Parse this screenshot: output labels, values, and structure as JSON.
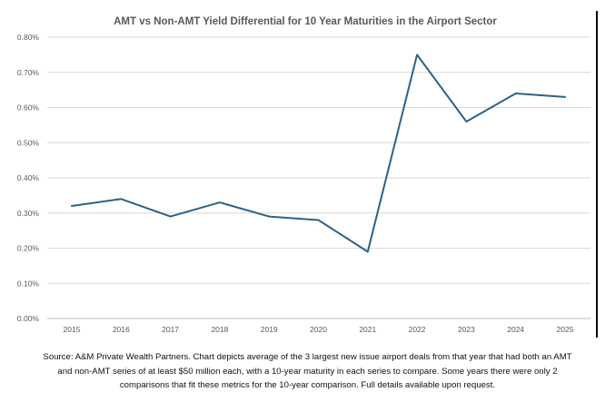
{
  "chart_data": {
    "type": "line",
    "title": "AMT vs Non-AMT Yield Differential for 10 Year Maturities in the Airport Sector",
    "xlabel": "",
    "ylabel": "",
    "x": [
      "2015",
      "2016",
      "2017",
      "2018",
      "2019",
      "2020",
      "2021",
      "2022",
      "2023",
      "2024",
      "2025"
    ],
    "values": [
      0.32,
      0.34,
      0.29,
      0.33,
      0.29,
      0.28,
      0.19,
      0.75,
      0.56,
      0.64,
      0.63
    ],
    "ylim": [
      0,
      0.8
    ],
    "yticks": [
      "0.00%",
      "0.10%",
      "0.20%",
      "0.30%",
      "0.40%",
      "0.50%",
      "0.60%",
      "0.70%",
      "0.80%"
    ],
    "grid": true,
    "legend": "none",
    "colors": {
      "line": "#2e6185",
      "grid": "#d9d9d9",
      "axis": "#d9d9d9",
      "text": "#595959"
    }
  },
  "source_lines": [
    "Source: A&M Private Wealth Partners. Chart depicts average of the 3 largest new issue airport deals from that year that had both an AMT",
    "and non-AMT series of at least $50 million each, with a 10-year maturity in each series to compare. Some years there were only 2",
    "comparisons that fit these metrics for the 10-year comparison.  Full details available upon request."
  ]
}
